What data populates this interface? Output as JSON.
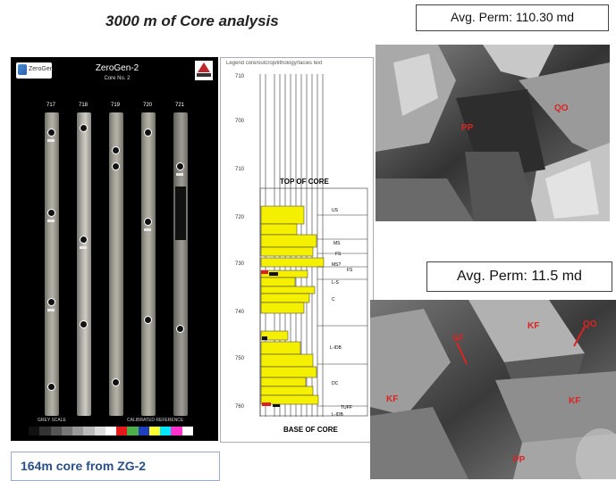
{
  "slide": {
    "title": "3000 m of Core analysis",
    "caption": "164m core from ZG-2"
  },
  "core_photo": {
    "logo_text": "ZeroGen",
    "title": "ZeroGen-2",
    "subtitle": "Core No. 2",
    "box_numbers": [
      "717",
      "718",
      "719",
      "720",
      "721"
    ],
    "scale_left": "GREY SCALE",
    "scale_right": "CALIBRATED REFERENCE",
    "swatch_colors": [
      "#111111",
      "#333333",
      "#555555",
      "#777777",
      "#999999",
      "#bbbbbb",
      "#dddddd",
      "#ffffff",
      "#e41a1c",
      "#4daf4a",
      "#1f3fbf",
      "#ffff33",
      "#00e5ff",
      "#ff33cc",
      "#ffffff",
      "#000000"
    ]
  },
  "log": {
    "legend": "Legend core/outcrop/lithology/facies text",
    "depths": [
      "710",
      "700",
      "710",
      "720",
      "730",
      "740",
      "750",
      "760"
    ],
    "top_label": "TOP OF CORE",
    "base_label": "BASE OF CORE",
    "facies": [
      "US",
      "MS",
      "FS",
      "MS?",
      "FS",
      "L-S",
      "C",
      "L-IDB",
      "DC",
      "TUFF",
      "L-IDB"
    ]
  },
  "sem_top": {
    "perm": "Avg. Perm: 110.30 md",
    "labels": [
      "PP",
      "QO"
    ]
  },
  "sem_bottom": {
    "perm": "Avg. Perm: 11.5 md",
    "labels": [
      "KF",
      "SF",
      "QO",
      "KF",
      "KF",
      "PP"
    ]
  }
}
